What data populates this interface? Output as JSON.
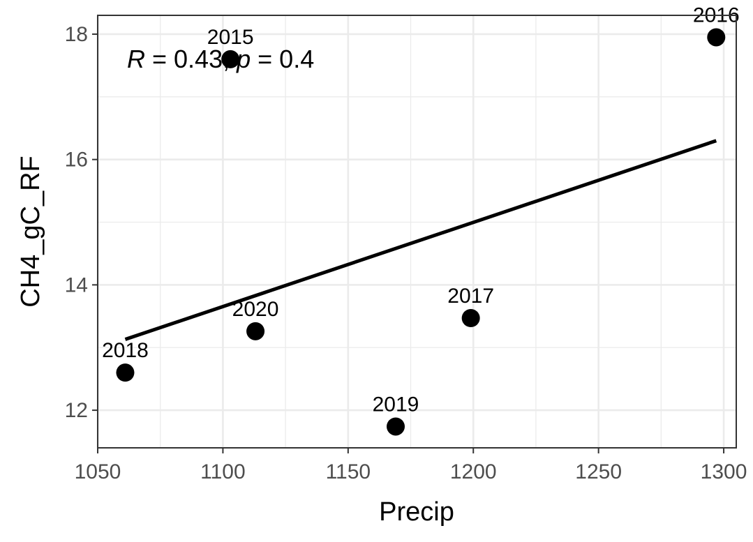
{
  "chart_data": {
    "type": "scatter",
    "xlabel": "Precip",
    "ylabel": "CH4_gC_RF",
    "xlim": [
      1050,
      1305
    ],
    "ylim": [
      11.4,
      18.3
    ],
    "x_ticks": [
      1050,
      1100,
      1150,
      1200,
      1250,
      1300
    ],
    "y_ticks": [
      12,
      14,
      16,
      18
    ],
    "grid": true,
    "points": [
      {
        "label": "2015",
        "x": 1103,
        "y": 17.6
      },
      {
        "label": "2016",
        "x": 1297,
        "y": 17.95
      },
      {
        "label": "2017",
        "x": 1199,
        "y": 13.47
      },
      {
        "label": "2018",
        "x": 1061,
        "y": 12.6
      },
      {
        "label": "2019",
        "x": 1169,
        "y": 11.74
      },
      {
        "label": "2020",
        "x": 1113,
        "y": 13.26
      }
    ],
    "regression_line": {
      "x": [
        1061,
        1297
      ],
      "y": [
        13.13,
        16.3
      ]
    },
    "annotation": {
      "r_symbol": "R",
      "r_text": " = 0.43, ",
      "p_symbol": "p",
      "p_text": " = 0.4"
    },
    "colors": {
      "points": "#000000",
      "line": "#000000",
      "grid": "#ebebeb",
      "panel_border": "#333333"
    }
  }
}
